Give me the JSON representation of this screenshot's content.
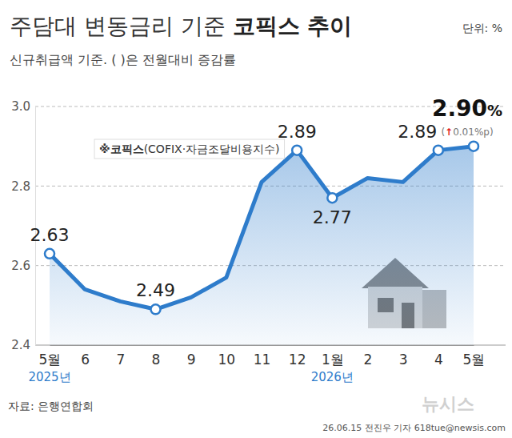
{
  "chart_data": {
    "type": "line",
    "title": "주담대 변동금리 기준 코픽스 추이",
    "title_bold": "코픽스 추이",
    "unit": "단위: %",
    "subtitle": "신규취급액 기준. ( )은 전월대비 증감률",
    "note": "※코픽스(COFIX·자금조달비용지수)",
    "note_bold": "※코픽스",
    "categories": [
      "5월",
      "6",
      "7",
      "8",
      "9",
      "10",
      "11",
      "12",
      "1월",
      "2",
      "3",
      "4",
      "5월"
    ],
    "year_labels": [
      {
        "category_index": 0,
        "label": "2025년"
      },
      {
        "category_index": 8,
        "label": "2026년"
      }
    ],
    "values": [
      2.63,
      2.54,
      2.51,
      2.49,
      2.52,
      2.57,
      2.81,
      2.89,
      2.77,
      2.82,
      2.81,
      2.89,
      2.9
    ],
    "value_labels": [
      "2.63",
      null,
      null,
      "2.49",
      null,
      null,
      null,
      "2.89",
      "2.77",
      null,
      null,
      "2.89",
      "2.90%"
    ],
    "change_label": "(↑0.01%p)",
    "color": "#2e7ccb",
    "marker": "circle",
    "data_labels": true,
    "ylim": [
      2.4,
      3.0
    ],
    "yticks": [
      2.4,
      2.6,
      2.8,
      {
        "value": 3,
        "label": "3.0"
      }
    ],
    "grid": true,
    "source": "자료: 은행연합회",
    "credit": "26.06.15 전진우 기자 618tue@newsis.com",
    "watermark": "뉴시스"
  }
}
